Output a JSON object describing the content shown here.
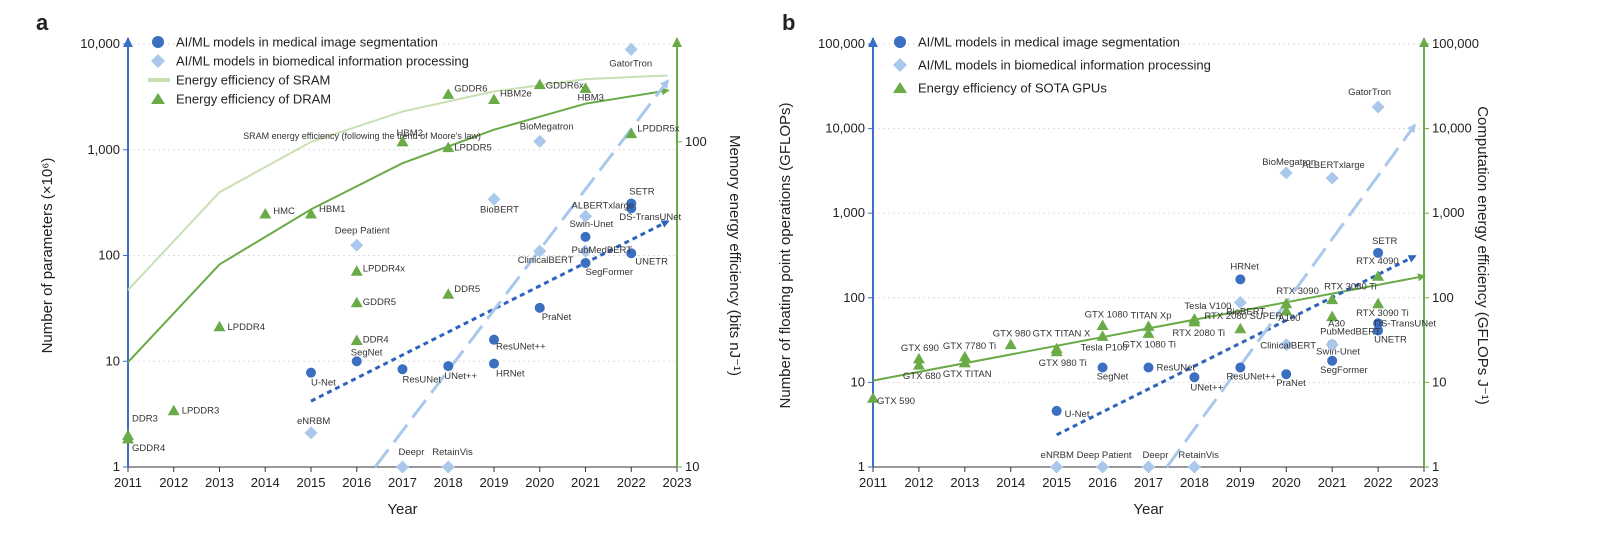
{
  "colors": {
    "segmentation": "#3b6fc2",
    "info": "#a9c8ec",
    "sram": "#c8e0b4",
    "dram": "#6aab48",
    "gpu": "#6aab48",
    "left_axis": "#3b6fc2",
    "right_axis": "#6aab48",
    "trend_segmentation": "#2f63bb",
    "trend_info": "#a9c8ec",
    "trend_green": "#6aab48"
  },
  "chart_data": [
    {
      "type": "scatter",
      "panel": "a",
      "xlabel": "Year",
      "ylabel": "Number of parameters (×10⁶)",
      "y2label": "Memory energy efficiency (bits nJ⁻¹)",
      "xlim": [
        2011,
        2023
      ],
      "x_ticks": [
        "2011",
        "2012",
        "2013",
        "2014",
        "2015",
        "2016",
        "2017",
        "2018",
        "2019",
        "2020",
        "2021",
        "2022",
        "2023"
      ],
      "ylim": [
        1,
        10000
      ],
      "y_scale": "log",
      "y_ticks": [
        "1",
        "10",
        "100",
        "1,000",
        "10,000"
      ],
      "y2lim": [
        10,
        200
      ],
      "y2_scale": "log",
      "y2_ticks": [
        "10",
        "100"
      ],
      "legend": [
        {
          "label": "AI/ML models in medical image segmentation",
          "marker": "circle",
          "color": "#3b6fc2"
        },
        {
          "label": "AI/ML models in biomedical information processing",
          "marker": "diamond",
          "color": "#a9c8ec"
        },
        {
          "label": "Energy efficiency of SRAM",
          "marker": "line",
          "color": "#c8e0b4"
        },
        {
          "label": "Energy efficiency of DRAM",
          "marker": "triangle",
          "color": "#6aab48"
        }
      ],
      "annotation": "SRAM energy efficiency (following the trend of Moore's law)",
      "series": [
        {
          "name": "AI/ML models in medical image segmentation",
          "marker": "circle",
          "axis": "left",
          "points": [
            {
              "label": "U-Net",
              "x": 2015,
              "y": 7.8
            },
            {
              "label": "SegNet",
              "x": 2016,
              "y": 10
            },
            {
              "label": "ResUNet",
              "x": 2017,
              "y": 8.4
            },
            {
              "label": "UNet++",
              "x": 2018,
              "y": 9
            },
            {
              "label": "ResUNet++",
              "x": 2019,
              "y": 16
            },
            {
              "label": "HRNet",
              "x": 2019,
              "y": 9.5
            },
            {
              "label": "PraNet",
              "x": 2020,
              "y": 32
            },
            {
              "label": "Swin-Unet",
              "x": 2021,
              "y": 150
            },
            {
              "label": "SegFormer",
              "x": 2021,
              "y": 85
            },
            {
              "label": "SETR",
              "x": 2022,
              "y": 310
            },
            {
              "label": "DS-TransUNet",
              "x": 2022,
              "y": 280
            },
            {
              "label": "UNETR",
              "x": 2022,
              "y": 105
            }
          ]
        },
        {
          "name": "AI/ML models in biomedical information processing",
          "marker": "diamond",
          "axis": "left",
          "points": [
            {
              "label": "eNRBM",
              "x": 2015,
              "y": 2.1
            },
            {
              "label": "Deep Patient",
              "x": 2016,
              "y": 125
            },
            {
              "label": "Deepr",
              "x": 2017,
              "y": 1
            },
            {
              "label": "RetainVis",
              "x": 2018,
              "y": 1
            },
            {
              "label": "BioBERT",
              "x": 2019,
              "y": 340
            },
            {
              "label": "ClinicalBERT",
              "x": 2020,
              "y": 110
            },
            {
              "label": "BioMegatron",
              "x": 2020,
              "y": 1200
            },
            {
              "label": "ALBERTxlarge",
              "x": 2021,
              "y": 235
            },
            {
              "label": "PubMedBERT",
              "x": 2021,
              "y": 110
            },
            {
              "label": "GatorTron",
              "x": 2022,
              "y": 8900
            }
          ]
        },
        {
          "name": "Energy efficiency of DRAM",
          "marker": "triangle",
          "axis": "right",
          "points": [
            {
              "label": "DDR3",
              "x": 2011,
              "y": 12.5
            },
            {
              "label": "GDDR4",
              "x": 2011,
              "y": 12.2
            },
            {
              "label": "LPDDR3",
              "x": 2012,
              "y": 14.9
            },
            {
              "label": "LPDDR4",
              "x": 2013,
              "y": 27
            },
            {
              "label": "HMC",
              "x": 2014,
              "y": 60
            },
            {
              "label": "HBM1",
              "x": 2015,
              "y": 60
            },
            {
              "label": "LPDDR4x",
              "x": 2016,
              "y": 40
            },
            {
              "label": "GDDR5",
              "x": 2016,
              "y": 32
            },
            {
              "label": "DDR4",
              "x": 2016,
              "y": 24.5
            },
            {
              "label": "HBM2",
              "x": 2017,
              "y": 100
            },
            {
              "label": "GDDR6",
              "x": 2018,
              "y": 140
            },
            {
              "label": "LPDDR5",
              "x": 2018,
              "y": 96
            },
            {
              "label": "DDR5",
              "x": 2018,
              "y": 34
            },
            {
              "label": "HBM2e",
              "x": 2019,
              "y": 135
            },
            {
              "label": "GDDR6x",
              "x": 2020,
              "y": 150
            },
            {
              "label": "HBM3",
              "x": 2021,
              "y": 146
            },
            {
              "label": "LPDDR5x",
              "x": 2022,
              "y": 106
            }
          ]
        }
      ],
      "trend_lines": [
        {
          "name": "Energy efficiency of SRAM",
          "axis": "right",
          "style": "solid",
          "color": "#c8e0b4",
          "x": [
            2011,
            2013,
            2015,
            2017,
            2019,
            2021,
            2022.8
          ],
          "y": [
            35,
            70,
            100,
            124,
            143,
            156,
            160
          ]
        },
        {
          "name": "DRAM trend",
          "axis": "right",
          "style": "solid",
          "color": "#6aab48",
          "x": [
            2011,
            2013,
            2015,
            2017,
            2019,
            2021,
            2022.8
          ],
          "y": [
            21,
            42,
            62,
            86,
            109,
            131,
            144
          ]
        },
        {
          "name": "Segmentation trend",
          "axis": "left",
          "style": "dotted",
          "color": "#2f63bb",
          "x": [
            2015,
            2022.8
          ],
          "y": [
            4.2,
            210
          ],
          "arrow": true
        },
        {
          "name": "Information processing trend",
          "axis": "left",
          "style": "dashed",
          "color": "#a9c8ec",
          "x": [
            2016.4,
            2022.8
          ],
          "y": [
            1,
            4500
          ],
          "arrow": true
        }
      ]
    },
    {
      "type": "scatter",
      "panel": "b",
      "xlabel": "Year",
      "ylabel": "Number of floating point operations (GFLOPs)",
      "y2label": "Computation energy efficiency (GFLOPs J⁻¹)",
      "xlim": [
        2011,
        2023
      ],
      "x_ticks": [
        "2011",
        "2012",
        "2013",
        "2014",
        "2015",
        "2016",
        "2017",
        "2018",
        "2019",
        "2020",
        "2021",
        "2022",
        "2023"
      ],
      "ylim": [
        1,
        100000
      ],
      "y_scale": "log",
      "y_ticks": [
        "1",
        "10",
        "100",
        "1,000",
        "10,000",
        "100,000"
      ],
      "y2lim": [
        1,
        100000
      ],
      "y2_scale": "log",
      "y2_ticks": [
        "1",
        "10",
        "100",
        "1,000",
        "10,000",
        "100,000"
      ],
      "legend": [
        {
          "label": "AI/ML models in medical image segmentation",
          "marker": "circle",
          "color": "#3b6fc2"
        },
        {
          "label": "AI/ML models in biomedical information processing",
          "marker": "diamond",
          "color": "#a9c8ec"
        },
        {
          "label": "Energy efficiency of SOTA GPUs",
          "marker": "triangle",
          "color": "#6aab48"
        }
      ],
      "series": [
        {
          "name": "AI/ML models in medical image segmentation",
          "marker": "circle",
          "axis": "left",
          "points": [
            {
              "label": "U-Net",
              "x": 2015,
              "y": 4.6
            },
            {
              "label": "SegNet",
              "x": 2016,
              "y": 15
            },
            {
              "label": "ResUNet",
              "x": 2017,
              "y": 15
            },
            {
              "label": "UNet++",
              "x": 2018,
              "y": 11.5
            },
            {
              "label": "ResUNet++",
              "x": 2019,
              "y": 15
            },
            {
              "label": "HRNet",
              "x": 2019,
              "y": 165
            },
            {
              "label": "PraNet",
              "x": 2020,
              "y": 12.5
            },
            {
              "label": "SegFormer",
              "x": 2021,
              "y": 18
            },
            {
              "label": "Swin-Unet",
              "x": 2021,
              "y": 28
            },
            {
              "label": "SETR",
              "x": 2022,
              "y": 340
            },
            {
              "label": "DS-TransUNet",
              "x": 2022,
              "y": 50
            },
            {
              "label": "UNETR",
              "x": 2022,
              "y": 41
            }
          ]
        },
        {
          "name": "AI/ML models in biomedical information processing",
          "marker": "diamond",
          "axis": "left",
          "points": [
            {
              "label": "eNRBM",
              "x": 2015,
              "y": 1
            },
            {
              "label": "Deep Patient",
              "x": 2016,
              "y": 1
            },
            {
              "label": "Deepr",
              "x": 2017,
              "y": 1
            },
            {
              "label": "RetainVis",
              "x": 2018,
              "y": 1
            },
            {
              "label": "BioBERT",
              "x": 2019,
              "y": 88
            },
            {
              "label": "BioMegatron",
              "x": 2020,
              "y": 3000
            },
            {
              "label": "ClinicalBERT",
              "x": 2020,
              "y": 28
            },
            {
              "label": "ALBERTxlarge",
              "x": 2021,
              "y": 2600
            },
            {
              "label": "PubMedBERT",
              "x": 2021,
              "y": 28
            },
            {
              "label": "GatorTron",
              "x": 2022,
              "y": 18000
            }
          ]
        },
        {
          "name": "Energy efficiency of SOTA GPUs",
          "marker": "triangle",
          "axis": "right",
          "points": [
            {
              "label": "GTX 590",
              "x": 2011,
              "y": 6.5
            },
            {
              "label": "GTX 690",
              "x": 2012,
              "y": 19
            },
            {
              "label": "GTX 680",
              "x": 2012,
              "y": 16
            },
            {
              "label": "GTX 7780 Ti",
              "x": 2013,
              "y": 20
            },
            {
              "label": "GTX TITAN",
              "x": 2013,
              "y": 17
            },
            {
              "label": "GTX 980",
              "x": 2014,
              "y": 28
            },
            {
              "label": "GTX TITAN X",
              "x": 2015,
              "y": 25
            },
            {
              "label": "GTX 980 Ti",
              "x": 2015,
              "y": 23
            },
            {
              "label": "GTX 1080",
              "x": 2016,
              "y": 47
            },
            {
              "label": "Tesla P100",
              "x": 2016,
              "y": 35
            },
            {
              "label": "TITAN Xp",
              "x": 2017,
              "y": 46
            },
            {
              "label": "GTX 1080 Ti",
              "x": 2017,
              "y": 38
            },
            {
              "label": "Tesla V100",
              "x": 2018,
              "y": 56
            },
            {
              "label": "RTX 2080 Ti",
              "x": 2018,
              "y": 52
            },
            {
              "label": "RTX 2080 SUPER",
              "x": 2019,
              "y": 43
            },
            {
              "label": "RTX 3090",
              "x": 2020,
              "y": 85
            },
            {
              "label": "A100",
              "x": 2020,
              "y": 70
            },
            {
              "label": "RTX 3080 Ti",
              "x": 2021,
              "y": 95
            },
            {
              "label": "A30",
              "x": 2021,
              "y": 60
            },
            {
              "label": "RTX 4090",
              "x": 2022,
              "y": 180
            },
            {
              "label": "RTX 3090 Ti",
              "x": 2022,
              "y": 85
            }
          ]
        }
      ],
      "trend_lines": [
        {
          "name": "GPU trend",
          "axis": "right",
          "style": "solid",
          "color": "#6aab48",
          "x": [
            2011,
            2023
          ],
          "y": [
            10.5,
            180
          ]
        },
        {
          "name": "Segmentation trend",
          "axis": "left",
          "style": "dotted",
          "color": "#2f63bb",
          "x": [
            2015,
            2022.8
          ],
          "y": [
            2.4,
            310
          ],
          "arrow": true
        },
        {
          "name": "Information processing trend",
          "axis": "left",
          "style": "dashed",
          "color": "#a9c8ec",
          "x": [
            2017.4,
            2022.8
          ],
          "y": [
            1,
            11000
          ],
          "arrow": true
        }
      ]
    }
  ]
}
